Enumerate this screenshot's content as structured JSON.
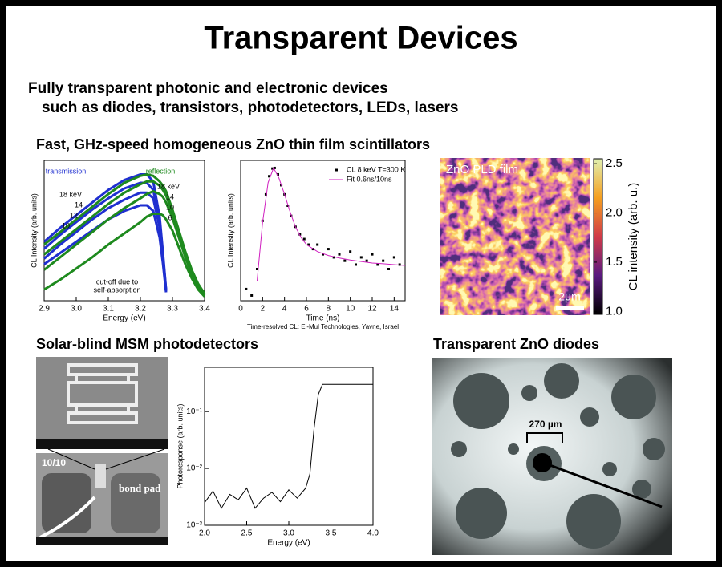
{
  "title": "Transparent Devices",
  "intro": [
    "Fully transparent photonic and electronic devices",
    "such as diodes, transistors, photodetectors, LEDs, lasers"
  ],
  "sections": [
    "Fast, GHz-speed homogeneous ZnO thin film scintillators",
    "Solar-blind MSM photodetectors",
    "Transparent ZnO diodes"
  ],
  "chart_data": [
    {
      "type": "line",
      "xlabel": "Energy (eV)",
      "ylabel": "CL Intensity (arb. units)",
      "xlim": [
        2.9,
        3.4
      ],
      "ylim": [
        0,
        1
      ],
      "xticks": [
        2.9,
        {
          "value": 3,
          "label": "3.0"
        },
        3.1,
        3.2,
        3.3,
        3.4
      ],
      "x": [
        2.9,
        2.95,
        3.0,
        3.05,
        3.1,
        3.15,
        3.2,
        3.22,
        3.24,
        3.26,
        3.27,
        3.28,
        3.3,
        3.32,
        3.34,
        3.36,
        3.38,
        3.4
      ],
      "series": [
        {
          "color": "#1f2fd0",
          "values": [
            0.42,
            0.52,
            0.61,
            0.7,
            0.79,
            0.86,
            0.9,
            0.9,
            0.85,
            0.6,
            0.35,
            0.08,
            null,
            null,
            null,
            null,
            null,
            null
          ]
        },
        {
          "color": "#1f2fd0",
          "values": [
            0.37,
            0.47,
            0.56,
            0.65,
            0.73,
            0.8,
            0.84,
            0.84,
            0.79,
            0.56,
            0.33,
            0.07,
            null,
            null,
            null,
            null,
            null,
            null
          ]
        },
        {
          "color": "#1f2fd0",
          "values": [
            0.3,
            0.4,
            0.49,
            0.58,
            0.66,
            0.72,
            0.77,
            0.77,
            0.73,
            0.52,
            0.3,
            0.07,
            null,
            null,
            null,
            null,
            null,
            null
          ]
        },
        {
          "color": "#1f2fd0",
          "values": [
            0.26,
            0.34,
            0.42,
            0.5,
            0.58,
            0.64,
            0.68,
            0.68,
            0.64,
            0.45,
            0.27,
            0.06,
            null,
            null,
            null,
            null,
            null,
            null
          ]
        },
        {
          "color": "#1e8a1e",
          "values": [
            0.4,
            0.49,
            0.58,
            0.67,
            0.76,
            0.84,
            0.89,
            0.9,
            0.89,
            0.85,
            0.82,
            0.78,
            0.65,
            0.5,
            0.35,
            0.22,
            0.12,
            0.05
          ]
        },
        {
          "color": "#1e8a1e",
          "values": [
            0.33,
            0.42,
            0.51,
            0.6,
            0.69,
            0.77,
            0.83,
            0.85,
            0.85,
            0.82,
            0.79,
            0.75,
            0.63,
            0.48,
            0.33,
            0.2,
            0.1,
            0.04
          ]
        },
        {
          "color": "#1e8a1e",
          "values": [
            0.22,
            0.31,
            0.4,
            0.49,
            0.58,
            0.66,
            0.73,
            0.76,
            0.78,
            0.76,
            0.74,
            0.7,
            0.59,
            0.45,
            0.31,
            0.19,
            0.1,
            0.04
          ]
        },
        {
          "color": "#1e8a1e",
          "values": [
            0.08,
            0.15,
            0.23,
            0.31,
            0.4,
            0.48,
            0.56,
            0.6,
            0.62,
            0.62,
            0.61,
            0.58,
            0.5,
            0.38,
            0.26,
            0.16,
            0.08,
            0.03
          ]
        }
      ],
      "annotations": [
        "transmission",
        "reflection",
        "18 keV",
        "14",
        "12",
        "10",
        "18 keV",
        "14",
        "10",
        "6",
        "cut-off due to",
        "self-absorption"
      ]
    },
    {
      "type": "line",
      "xlabel": "Time (ns)",
      "ylabel": "CL Intensity (arb. units)",
      "xlim": [
        0,
        15
      ],
      "ylim": [
        0.01,
        1.3
      ],
      "ylog": true,
      "xticks": [
        0,
        2,
        4,
        6,
        8,
        10,
        12,
        14
      ],
      "legend": "upper right",
      "caption": "Time-resolved CL: El-Mul Technologies, Yavne, Israel",
      "series": [
        {
          "name": "CL 8 keV T=300 K",
          "color": "#000000",
          "mode": "markers",
          "x": [
            0.5,
            1,
            1.5,
            2,
            2.3,
            2.6,
            2.9,
            3.1,
            3.4,
            3.7,
            4,
            4.3,
            4.6,
            5,
            5.4,
            5.8,
            6.2,
            6.6,
            7,
            7.5,
            8,
            8.5,
            9,
            9.5,
            10,
            10.5,
            11,
            11.5,
            12,
            12.5,
            13,
            13.5,
            14,
            14.5
          ],
          "values": [
            0.015,
            0.012,
            0.03,
            0.16,
            0.4,
            0.75,
            0.98,
            1.0,
            0.8,
            0.55,
            0.4,
            0.27,
            0.19,
            0.13,
            0.1,
            0.085,
            0.07,
            0.06,
            0.07,
            0.05,
            0.06,
            0.045,
            0.05,
            0.04,
            0.055,
            0.035,
            0.045,
            0.04,
            0.05,
            0.035,
            0.04,
            0.03,
            0.045,
            0.035
          ]
        },
        {
          "name": "Fit 0.6ns/10ns",
          "color": "#d020c0",
          "x": [
            1.5,
            2,
            2.5,
            3,
            3.5,
            4,
            4.5,
            5,
            5.5,
            6,
            7,
            8,
            9,
            10,
            11,
            12,
            13,
            14,
            15
          ],
          "values": [
            0.02,
            0.15,
            0.6,
            1.0,
            0.7,
            0.4,
            0.22,
            0.13,
            0.09,
            0.07,
            0.055,
            0.048,
            0.044,
            0.041,
            0.039,
            0.037,
            0.036,
            0.035,
            0.034
          ]
        }
      ]
    },
    {
      "type": "line",
      "xlabel": "Energy (eV)",
      "ylabel": "Photoresponse (arb. units)",
      "xlim": [
        2.0,
        4.0
      ],
      "ylim": [
        0.001,
        0.6
      ],
      "ylog": true,
      "xticks": [
        {
          "value": 2,
          "label": "2.0"
        },
        2.5,
        {
          "value": 3,
          "label": "3.0"
        },
        3.5,
        {
          "value": 4,
          "label": "4.0"
        }
      ],
      "yticks": [
        {
          "value": 0.001,
          "label": "10⁻³"
        },
        {
          "value": 0.01,
          "label": "10⁻²"
        },
        {
          "value": 0.1,
          "label": "10⁻¹"
        }
      ],
      "x": [
        2.0,
        2.1,
        2.2,
        2.3,
        2.4,
        2.5,
        2.6,
        2.7,
        2.8,
        2.9,
        3.0,
        3.1,
        3.2,
        3.25,
        3.3,
        3.35,
        3.4,
        3.5,
        3.6,
        3.8,
        4.0
      ],
      "series": [
        {
          "color": "#000000",
          "values": [
            0.0025,
            0.004,
            0.002,
            0.0035,
            0.0028,
            0.0045,
            0.002,
            0.003,
            0.0038,
            0.0026,
            0.0042,
            0.003,
            0.0045,
            0.008,
            0.05,
            0.2,
            0.3,
            0.3,
            0.3,
            0.3,
            0.3
          ]
        }
      ]
    }
  ],
  "cl_map": {
    "label": "ZnO PLD film",
    "scale_bar": "2μm",
    "colorbar_label": "CL intensity (arb. u.)",
    "colorbar_lim": [
      0.97,
      2.55
    ],
    "colorbar_ticks": [
      {
        "value": 1,
        "label": "1.0"
      },
      1.5,
      {
        "value": 2,
        "label": "2.0"
      },
      2.5
    ]
  },
  "sem": {
    "labels": [
      "10/10",
      "bond pad"
    ]
  },
  "diode": {
    "scale": "270 µm"
  }
}
